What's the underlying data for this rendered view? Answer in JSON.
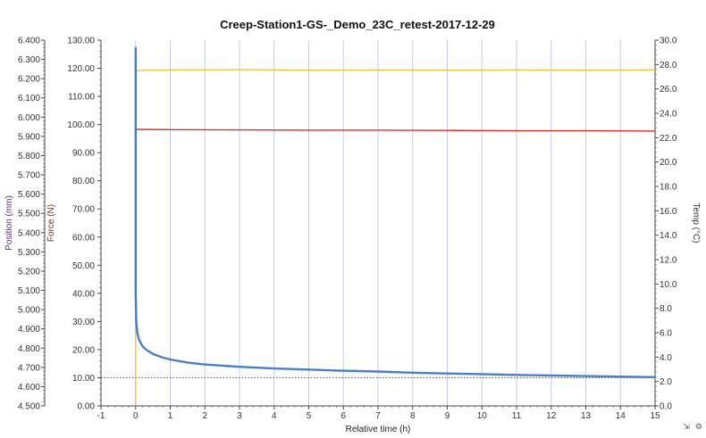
{
  "chart_data": {
    "type": "line",
    "title": "Creep-Station1-GS-_Demo_23C_retest-2017-12-29",
    "xlabel": "Relative time (h)",
    "xlim": [
      -1,
      15
    ],
    "xticks": [
      "-1",
      "0",
      "1",
      "2",
      "3",
      "4",
      "5",
      "6",
      "7",
      "8",
      "9",
      "10",
      "11",
      "12",
      "13",
      "14",
      "15"
    ],
    "axes": {
      "position": {
        "label": "Position (mm)",
        "ylim": [
          4.5,
          6.4
        ],
        "ticks": [
          "4.500",
          "4.600",
          "4.700",
          "4.800",
          "4.900",
          "5.000",
          "5.100",
          "5.200",
          "5.300",
          "5.400",
          "5.500",
          "5.600",
          "5.700",
          "5.800",
          "5.900",
          "6.000",
          "6.100",
          "6.200",
          "6.300",
          "6.400"
        ]
      },
      "force": {
        "label": "Force (N)",
        "ylim": [
          0,
          130
        ],
        "ticks": [
          "0.00",
          "10.00",
          "20.00",
          "30.00",
          "40.00",
          "50.00",
          "60.00",
          "70.00",
          "80.00",
          "90.00",
          "100.00",
          "110.00",
          "120.00",
          "130.00"
        ]
      },
      "temp": {
        "label": "Temp (°C)",
        "ylim": [
          0,
          30
        ],
        "ticks": [
          "0.0",
          "2.0",
          "4.0",
          "6.0",
          "8.0",
          "10.0",
          "12.0",
          "14.0",
          "16.0",
          "18.0",
          "20.0",
          "22.0",
          "24.0",
          "26.0",
          "28.0",
          "30.0"
        ]
      }
    },
    "series": [
      {
        "color": "#f5c242",
        "axis": "force",
        "x": [
          0,
          0,
          0.02,
          0.05,
          1,
          3,
          5,
          7,
          9,
          11,
          13,
          15
        ],
        "y": [
          0,
          118.5,
          118.5,
          119.2,
          119.4,
          119.5,
          119.3,
          119.4,
          119.3,
          119.4,
          119.3,
          119.4
        ]
      },
      {
        "color": "#d9302a",
        "axis": "force",
        "x": [
          0,
          1,
          3,
          5,
          7,
          9,
          11,
          13,
          15
        ],
        "y": [
          98.3,
          98.2,
          98.1,
          98.0,
          98.0,
          97.9,
          97.8,
          97.8,
          97.7
        ]
      },
      {
        "color": "#4a7fc4",
        "axis": "force",
        "x": [
          0,
          0,
          0.02,
          0.05,
          0.1,
          0.2,
          0.3,
          0.5,
          0.75,
          1,
          1.5,
          2,
          3,
          4,
          5,
          6,
          7,
          8,
          9,
          10,
          11,
          12,
          13,
          14,
          15
        ],
        "y": [
          127.5,
          40.0,
          30.0,
          26.0,
          23.5,
          21.2,
          20.0,
          18.5,
          17.3,
          16.5,
          15.4,
          14.7,
          13.9,
          13.3,
          12.9,
          12.5,
          12.2,
          11.8,
          11.5,
          11.3,
          11.0,
          10.8,
          10.6,
          10.4,
          10.2
        ]
      }
    ],
    "reference_line": {
      "axis": "force",
      "y": 10.0,
      "color": "#555555"
    },
    "grid": {
      "vertical": true,
      "horizontal": false,
      "color": "#c8cbe8"
    },
    "colors": {
      "position_axis": "#5a3070",
      "force_axis": "#6b3a2a",
      "temp_axis": "#333333"
    }
  }
}
